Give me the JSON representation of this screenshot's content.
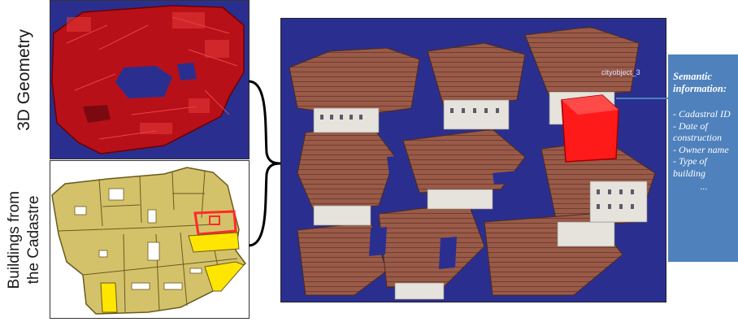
{
  "labels": {
    "geometry": "3D Geometry",
    "cadastre": "Buildings from\nthe Cadastre"
  },
  "model": {
    "tag": "cityobject_3"
  },
  "semantic": {
    "title": "Semantic information:",
    "items": [
      "- Cadastral ID",
      "- Date of construction",
      "- Owner name",
      "- Type of building"
    ],
    "ellipsis": "..."
  },
  "colors": {
    "sky_blue": "#2a2f8f",
    "geometry_red": "#c0121a",
    "cadastre_fill": "#d4c26a",
    "cadastre_highlight": "#ffe600",
    "selected_red": "#ff1a1a",
    "semantic_box": "#4f81bd"
  }
}
